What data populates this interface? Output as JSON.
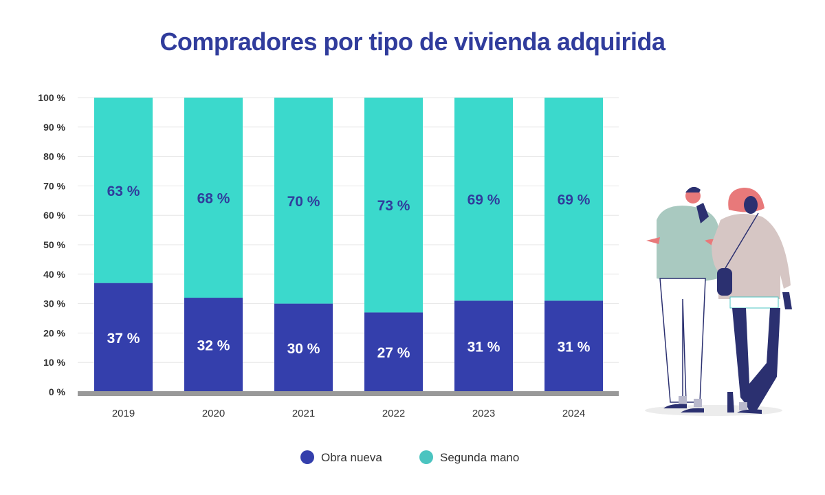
{
  "chart_data": {
    "type": "bar",
    "stacked": true,
    "title": "Compradores por tipo de vivienda adquirida",
    "xlabel": "",
    "ylabel": "",
    "ylim": [
      0,
      100
    ],
    "yticks": [
      "0 %",
      "10 %",
      "20 %",
      "30 %",
      "40 %",
      "50 %",
      "60 %",
      "70 %",
      "80 %",
      "90 %",
      "100 %"
    ],
    "categories": [
      "2019",
      "2020",
      "2021",
      "2022",
      "2023",
      "2024"
    ],
    "series": [
      {
        "name": "Obra nueva",
        "color": "#343fac",
        "label_color": "#ffffff",
        "values": [
          37,
          32,
          30,
          27,
          31,
          31
        ],
        "labels": [
          "37 %",
          "32 %",
          "30 %",
          "27 %",
          "31 %",
          "31 %"
        ]
      },
      {
        "name": "Segunda mano",
        "color": "#3bd9cc",
        "label_color": "#303c9c",
        "values": [
          63,
          68,
          70,
          73,
          69,
          69
        ],
        "labels": [
          "63 %",
          "68 %",
          "70 %",
          "73 %",
          "69 %",
          "69 %"
        ]
      }
    ],
    "legend": {
      "placement": "bottom",
      "marker_colors": [
        "#343fac",
        "#4bc4c0"
      ]
    },
    "grid": true
  }
}
